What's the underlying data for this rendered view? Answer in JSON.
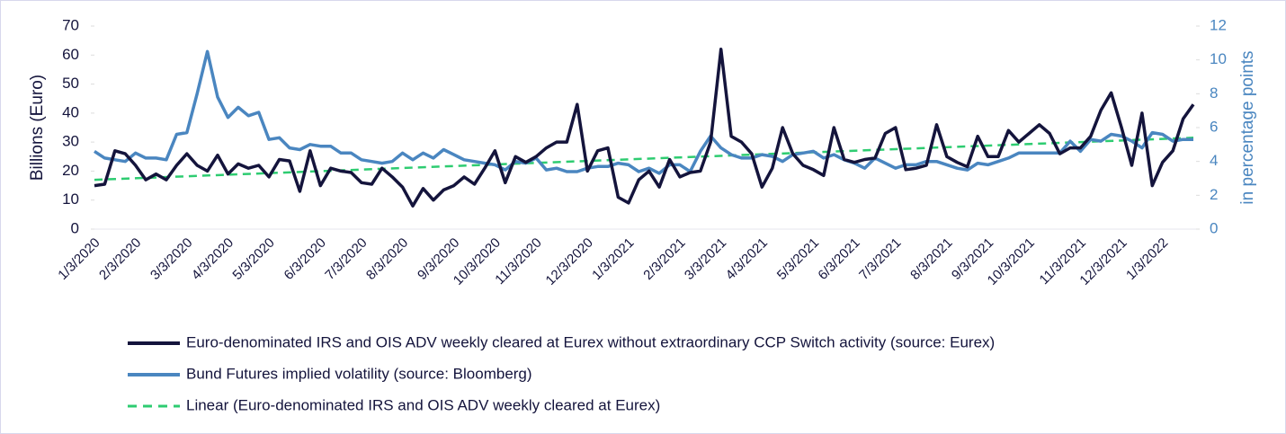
{
  "chart_data": {
    "type": "line",
    "y_label": "Billions (Euro)",
    "y2_label": "in percentage points",
    "categories": [
      "1/3/2020",
      null,
      null,
      null,
      "2/3/2020",
      null,
      null,
      null,
      null,
      "3/3/2020",
      null,
      null,
      null,
      "4/3/2020",
      null,
      null,
      null,
      "5/3/2020",
      null,
      null,
      null,
      null,
      "6/3/2020",
      null,
      null,
      null,
      "7/3/2020",
      null,
      null,
      null,
      "8/3/2020",
      null,
      null,
      null,
      null,
      "9/3/2020",
      null,
      null,
      null,
      "10/3/2020",
      null,
      null,
      null,
      "11/3/2020",
      null,
      null,
      null,
      null,
      "12/3/2020",
      null,
      null,
      null,
      "1/3/2021",
      null,
      null,
      null,
      null,
      "2/3/2021",
      null,
      null,
      null,
      "3/3/2021",
      null,
      null,
      null,
      "4/3/2021",
      null,
      null,
      null,
      null,
      "5/3/2021",
      null,
      null,
      null,
      "6/3/2021",
      null,
      null,
      null,
      "7/3/2021",
      null,
      null,
      null,
      null,
      "8/3/2021",
      null,
      null,
      null,
      "9/3/2021",
      null,
      null,
      null,
      "10/3/2021",
      null,
      null,
      null,
      null,
      "11/3/2021",
      null,
      null,
      null,
      "12/3/2021",
      null,
      null,
      null,
      "1/3/2022",
      null,
      null,
      null
    ],
    "series": [
      {
        "name": "Euro-denominated IRS and OIS ADV weekly cleared at Eurex without extraordinary CCP Switch activity (source: Eurex)",
        "color": "#14143c",
        "axis": "y",
        "values": [
          15,
          15.5,
          27,
          26,
          22,
          17,
          19,
          17,
          22,
          26,
          22,
          20,
          25.5,
          19,
          22.5,
          21,
          22,
          18,
          24,
          23.5,
          13,
          27,
          15,
          21,
          20,
          19.5,
          16,
          15.5,
          21,
          18,
          14.5,
          8,
          14,
          10,
          13.5,
          15,
          18,
          15.5,
          21,
          27,
          16,
          25,
          23,
          25,
          28,
          30,
          30,
          43,
          20,
          27,
          28,
          11,
          9,
          17,
          20,
          14.5,
          24,
          18,
          19.5,
          20,
          30,
          62,
          32,
          30,
          26,
          14.5,
          21,
          35,
          26,
          22,
          20.5,
          18.5,
          35,
          24,
          23,
          24,
          24.5,
          33,
          35,
          20.5,
          21,
          22,
          36,
          25,
          23,
          21.5,
          32,
          25,
          25,
          34,
          30,
          33,
          36,
          33,
          26,
          28,
          28,
          32,
          41,
          47,
          35,
          22,
          40,
          15,
          23,
          27,
          38,
          43
        ]
      },
      {
        "name": "Bund Futures implied volatility (source: Bloomberg)",
        "color": "#4a86c0",
        "axis": "y2",
        "values": [
          4.6,
          4.2,
          4.1,
          4.0,
          4.5,
          4.2,
          4.2,
          4.1,
          5.6,
          5.7,
          8.0,
          10.5,
          7.8,
          6.6,
          7.2,
          6.7,
          6.9,
          5.3,
          5.4,
          4.8,
          4.7,
          5.0,
          4.9,
          4.9,
          4.5,
          4.5,
          4.1,
          4.0,
          3.9,
          4.0,
          4.5,
          4.1,
          4.5,
          4.2,
          4.7,
          4.4,
          4.1,
          4.0,
          3.9,
          3.8,
          3.5,
          4.0,
          3.9,
          4.2,
          3.5,
          3.6,
          3.4,
          3.4,
          3.6,
          3.7,
          3.7,
          3.9,
          3.8,
          3.4,
          3.6,
          3.3,
          3.8,
          3.8,
          3.4,
          4.6,
          5.5,
          4.8,
          4.4,
          4.2,
          4.2,
          4.4,
          4.3,
          4.0,
          4.4,
          4.5,
          4.6,
          4.2,
          4.4,
          4.1,
          3.9,
          3.6,
          4.2,
          3.9,
          3.6,
          3.8,
          3.8,
          4.0,
          4.0,
          3.8,
          3.6,
          3.5,
          3.9,
          3.8,
          4.0,
          4.2,
          4.5,
          4.5,
          4.5,
          4.5,
          4.5,
          5.2,
          4.6,
          5.3,
          5.2,
          5.6,
          5.5,
          5.2,
          4.8,
          5.7,
          5.6,
          5.2,
          5.3,
          5.3
        ]
      }
    ],
    "trendline": {
      "name": "Linear (Euro-denominated IRS and OIS ADV weekly cleared at Eurex)",
      "color": "#2ecc71",
      "dashed": true,
      "values": [
        17,
        31.5
      ]
    },
    "ylim": [
      0,
      70
    ],
    "yticks": [
      0,
      10,
      20,
      30,
      40,
      50,
      60,
      70
    ],
    "y2lim": [
      0,
      12
    ],
    "y2ticks": [
      0,
      2,
      4,
      6,
      8,
      10,
      12
    ],
    "legend": "bottom"
  }
}
